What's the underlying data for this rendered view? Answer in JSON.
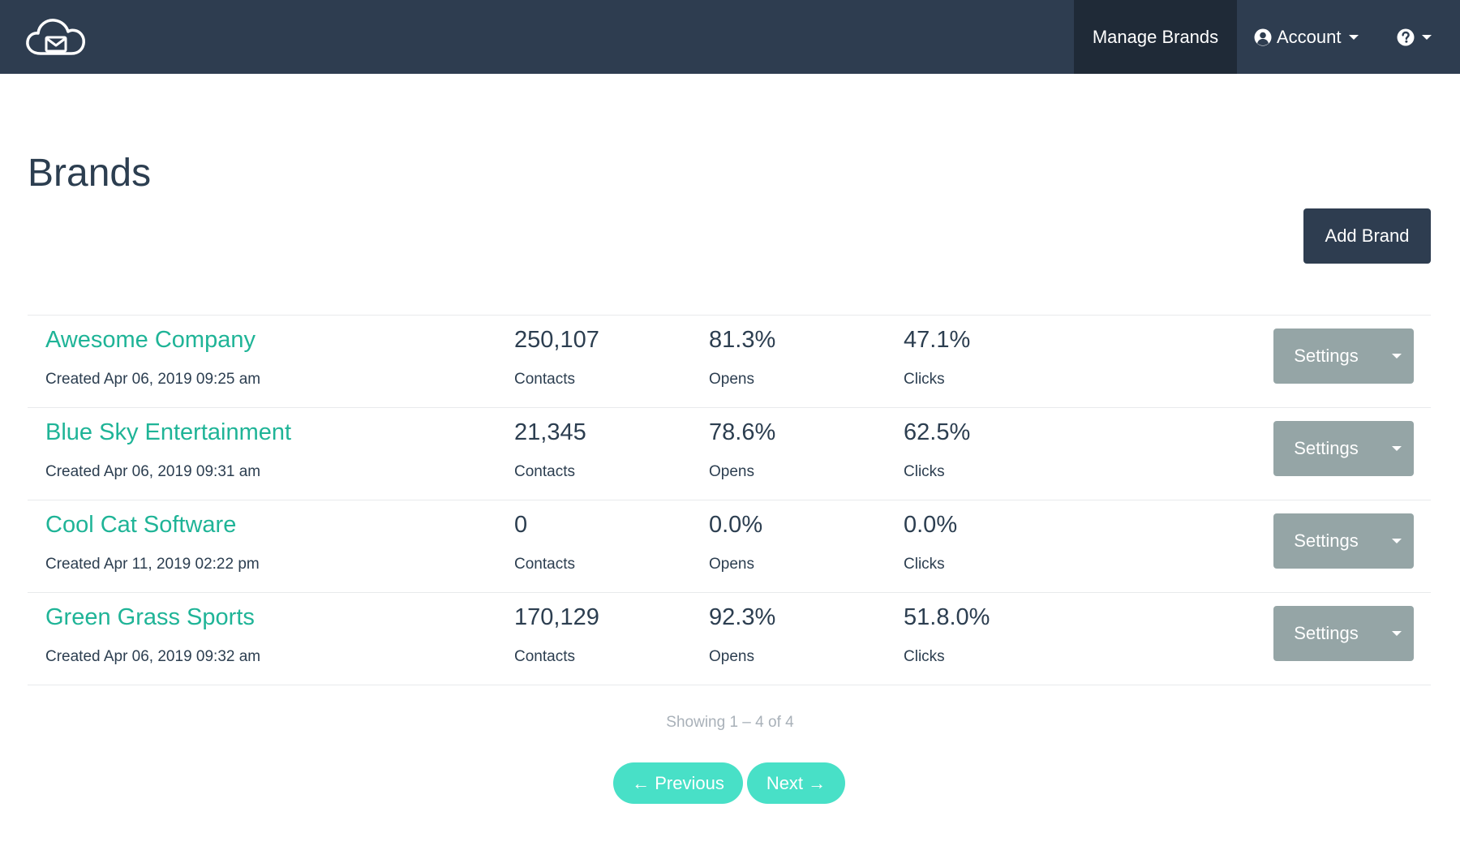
{
  "navbar": {
    "logo_icon": "cloud-mail-icon",
    "manage_brands_label": "Manage Brands",
    "account_label": "Account",
    "account_icon": "user-circle-icon",
    "help_icon": "question-circle-icon"
  },
  "page": {
    "title": "Brands",
    "add_brand_label": "Add Brand"
  },
  "brands": [
    {
      "name": "Awesome Company",
      "created": "Created Apr 06, 2019 09:25 am",
      "contacts": "250,107",
      "contacts_label": "Contacts",
      "opens": "81.3%",
      "opens_label": "Opens",
      "clicks": "47.1%",
      "clicks_label": "Clicks",
      "settings_label": "Settings"
    },
    {
      "name": "Blue Sky Entertainment",
      "created": "Created Apr 06, 2019 09:31 am",
      "contacts": "21,345",
      "contacts_label": "Contacts",
      "opens": "78.6%",
      "opens_label": "Opens",
      "clicks": "62.5%",
      "clicks_label": "Clicks",
      "settings_label": "Settings"
    },
    {
      "name": "Cool Cat Software",
      "created": "Created Apr 11, 2019 02:22 pm",
      "contacts": "0",
      "contacts_label": "Contacts",
      "opens": "0.0%",
      "opens_label": "Opens",
      "clicks": "0.0%",
      "clicks_label": "Clicks",
      "settings_label": "Settings"
    },
    {
      "name": "Green Grass Sports",
      "created": "Created Apr 06, 2019 09:32 am",
      "contacts": "170,129",
      "contacts_label": "Contacts",
      "opens": "92.3%",
      "opens_label": "Opens",
      "clicks": "51.8.0%",
      "clicks_label": "Clicks",
      "settings_label": "Settings"
    }
  ],
  "pagination": {
    "info": "Showing 1 – 4 of 4",
    "previous_label": "← Previous",
    "next_label": "Next →"
  },
  "colors": {
    "navbar_bg": "#2e3d50",
    "navbar_active_bg": "#1f2a37",
    "brand_link": "#1fb497",
    "settings_button": "#95a5a6",
    "pagination_button": "#48e0c7"
  }
}
